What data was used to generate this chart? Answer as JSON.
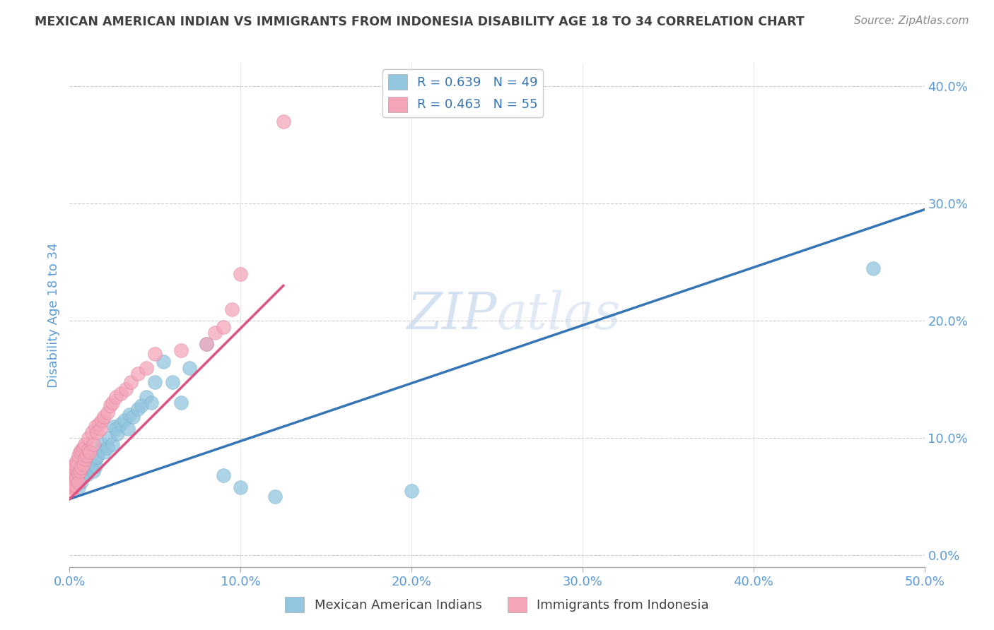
{
  "title": "MEXICAN AMERICAN INDIAN VS IMMIGRANTS FROM INDONESIA DISABILITY AGE 18 TO 34 CORRELATION CHART",
  "source": "Source: ZipAtlas.com",
  "ylabel": "Disability Age 18 to 34",
  "xlim": [
    0.0,
    0.5
  ],
  "ylim": [
    -0.01,
    0.42
  ],
  "xticks": [
    0.0,
    0.1,
    0.2,
    0.3,
    0.4,
    0.5
  ],
  "yticks": [
    0.0,
    0.1,
    0.2,
    0.3,
    0.4
  ],
  "legend_r1": "R = 0.639   N = 49",
  "legend_r2": "R = 0.463   N = 55",
  "blue_color": "#92c5de",
  "pink_color": "#f4a6b8",
  "blue_line_color": "#3575b5",
  "pink_line_color": "#e05080",
  "blue_scatter_x": [
    0.001,
    0.002,
    0.003,
    0.004,
    0.005,
    0.005,
    0.006,
    0.007,
    0.007,
    0.008,
    0.009,
    0.01,
    0.01,
    0.011,
    0.012,
    0.013,
    0.014,
    0.015,
    0.015,
    0.016,
    0.018,
    0.019,
    0.02,
    0.022,
    0.023,
    0.025,
    0.026,
    0.027,
    0.028,
    0.03,
    0.032,
    0.034,
    0.035,
    0.037,
    0.04,
    0.042,
    0.045,
    0.048,
    0.05,
    0.055,
    0.06,
    0.065,
    0.07,
    0.08,
    0.09,
    0.1,
    0.12,
    0.2,
    0.47
  ],
  "blue_scatter_y": [
    0.065,
    0.062,
    0.068,
    0.06,
    0.07,
    0.058,
    0.072,
    0.063,
    0.075,
    0.068,
    0.072,
    0.069,
    0.078,
    0.074,
    0.076,
    0.075,
    0.072,
    0.082,
    0.076,
    0.084,
    0.09,
    0.095,
    0.088,
    0.092,
    0.1,
    0.095,
    0.11,
    0.108,
    0.104,
    0.112,
    0.115,
    0.108,
    0.12,
    0.118,
    0.125,
    0.128,
    0.135,
    0.13,
    0.148,
    0.165,
    0.148,
    0.13,
    0.16,
    0.18,
    0.068,
    0.058,
    0.05,
    0.055,
    0.245
  ],
  "pink_scatter_x": [
    0.001,
    0.001,
    0.001,
    0.001,
    0.001,
    0.002,
    0.002,
    0.002,
    0.002,
    0.003,
    0.003,
    0.003,
    0.003,
    0.004,
    0.004,
    0.005,
    0.005,
    0.005,
    0.006,
    0.006,
    0.007,
    0.007,
    0.008,
    0.008,
    0.009,
    0.009,
    0.01,
    0.011,
    0.011,
    0.012,
    0.013,
    0.014,
    0.015,
    0.016,
    0.017,
    0.018,
    0.019,
    0.02,
    0.022,
    0.024,
    0.025,
    0.027,
    0.03,
    0.033,
    0.036,
    0.04,
    0.045,
    0.05,
    0.065,
    0.08,
    0.085,
    0.09,
    0.095,
    0.1,
    0.125
  ],
  "pink_scatter_y": [
    0.06,
    0.065,
    0.07,
    0.055,
    0.075,
    0.06,
    0.068,
    0.072,
    0.058,
    0.065,
    0.075,
    0.06,
    0.078,
    0.065,
    0.08,
    0.07,
    0.062,
    0.085,
    0.072,
    0.088,
    0.075,
    0.09,
    0.078,
    0.092,
    0.082,
    0.095,
    0.085,
    0.09,
    0.1,
    0.088,
    0.105,
    0.095,
    0.11,
    0.105,
    0.112,
    0.108,
    0.115,
    0.118,
    0.122,
    0.128,
    0.13,
    0.135,
    0.138,
    0.142,
    0.148,
    0.155,
    0.16,
    0.172,
    0.175,
    0.18,
    0.19,
    0.195,
    0.21,
    0.24,
    0.37
  ],
  "blue_line_x0": 0.0,
  "blue_line_x1": 0.5,
  "blue_line_y0": 0.048,
  "blue_line_y1": 0.295,
  "pink_line_x0": 0.0,
  "pink_line_x1": 0.125,
  "pink_line_y0": 0.048,
  "pink_line_y1": 0.23,
  "background_color": "#ffffff",
  "grid_color": "#cccccc",
  "title_color": "#404040",
  "axis_label_color": "#5b9bd5",
  "tick_label_color": "#5b9bd5"
}
